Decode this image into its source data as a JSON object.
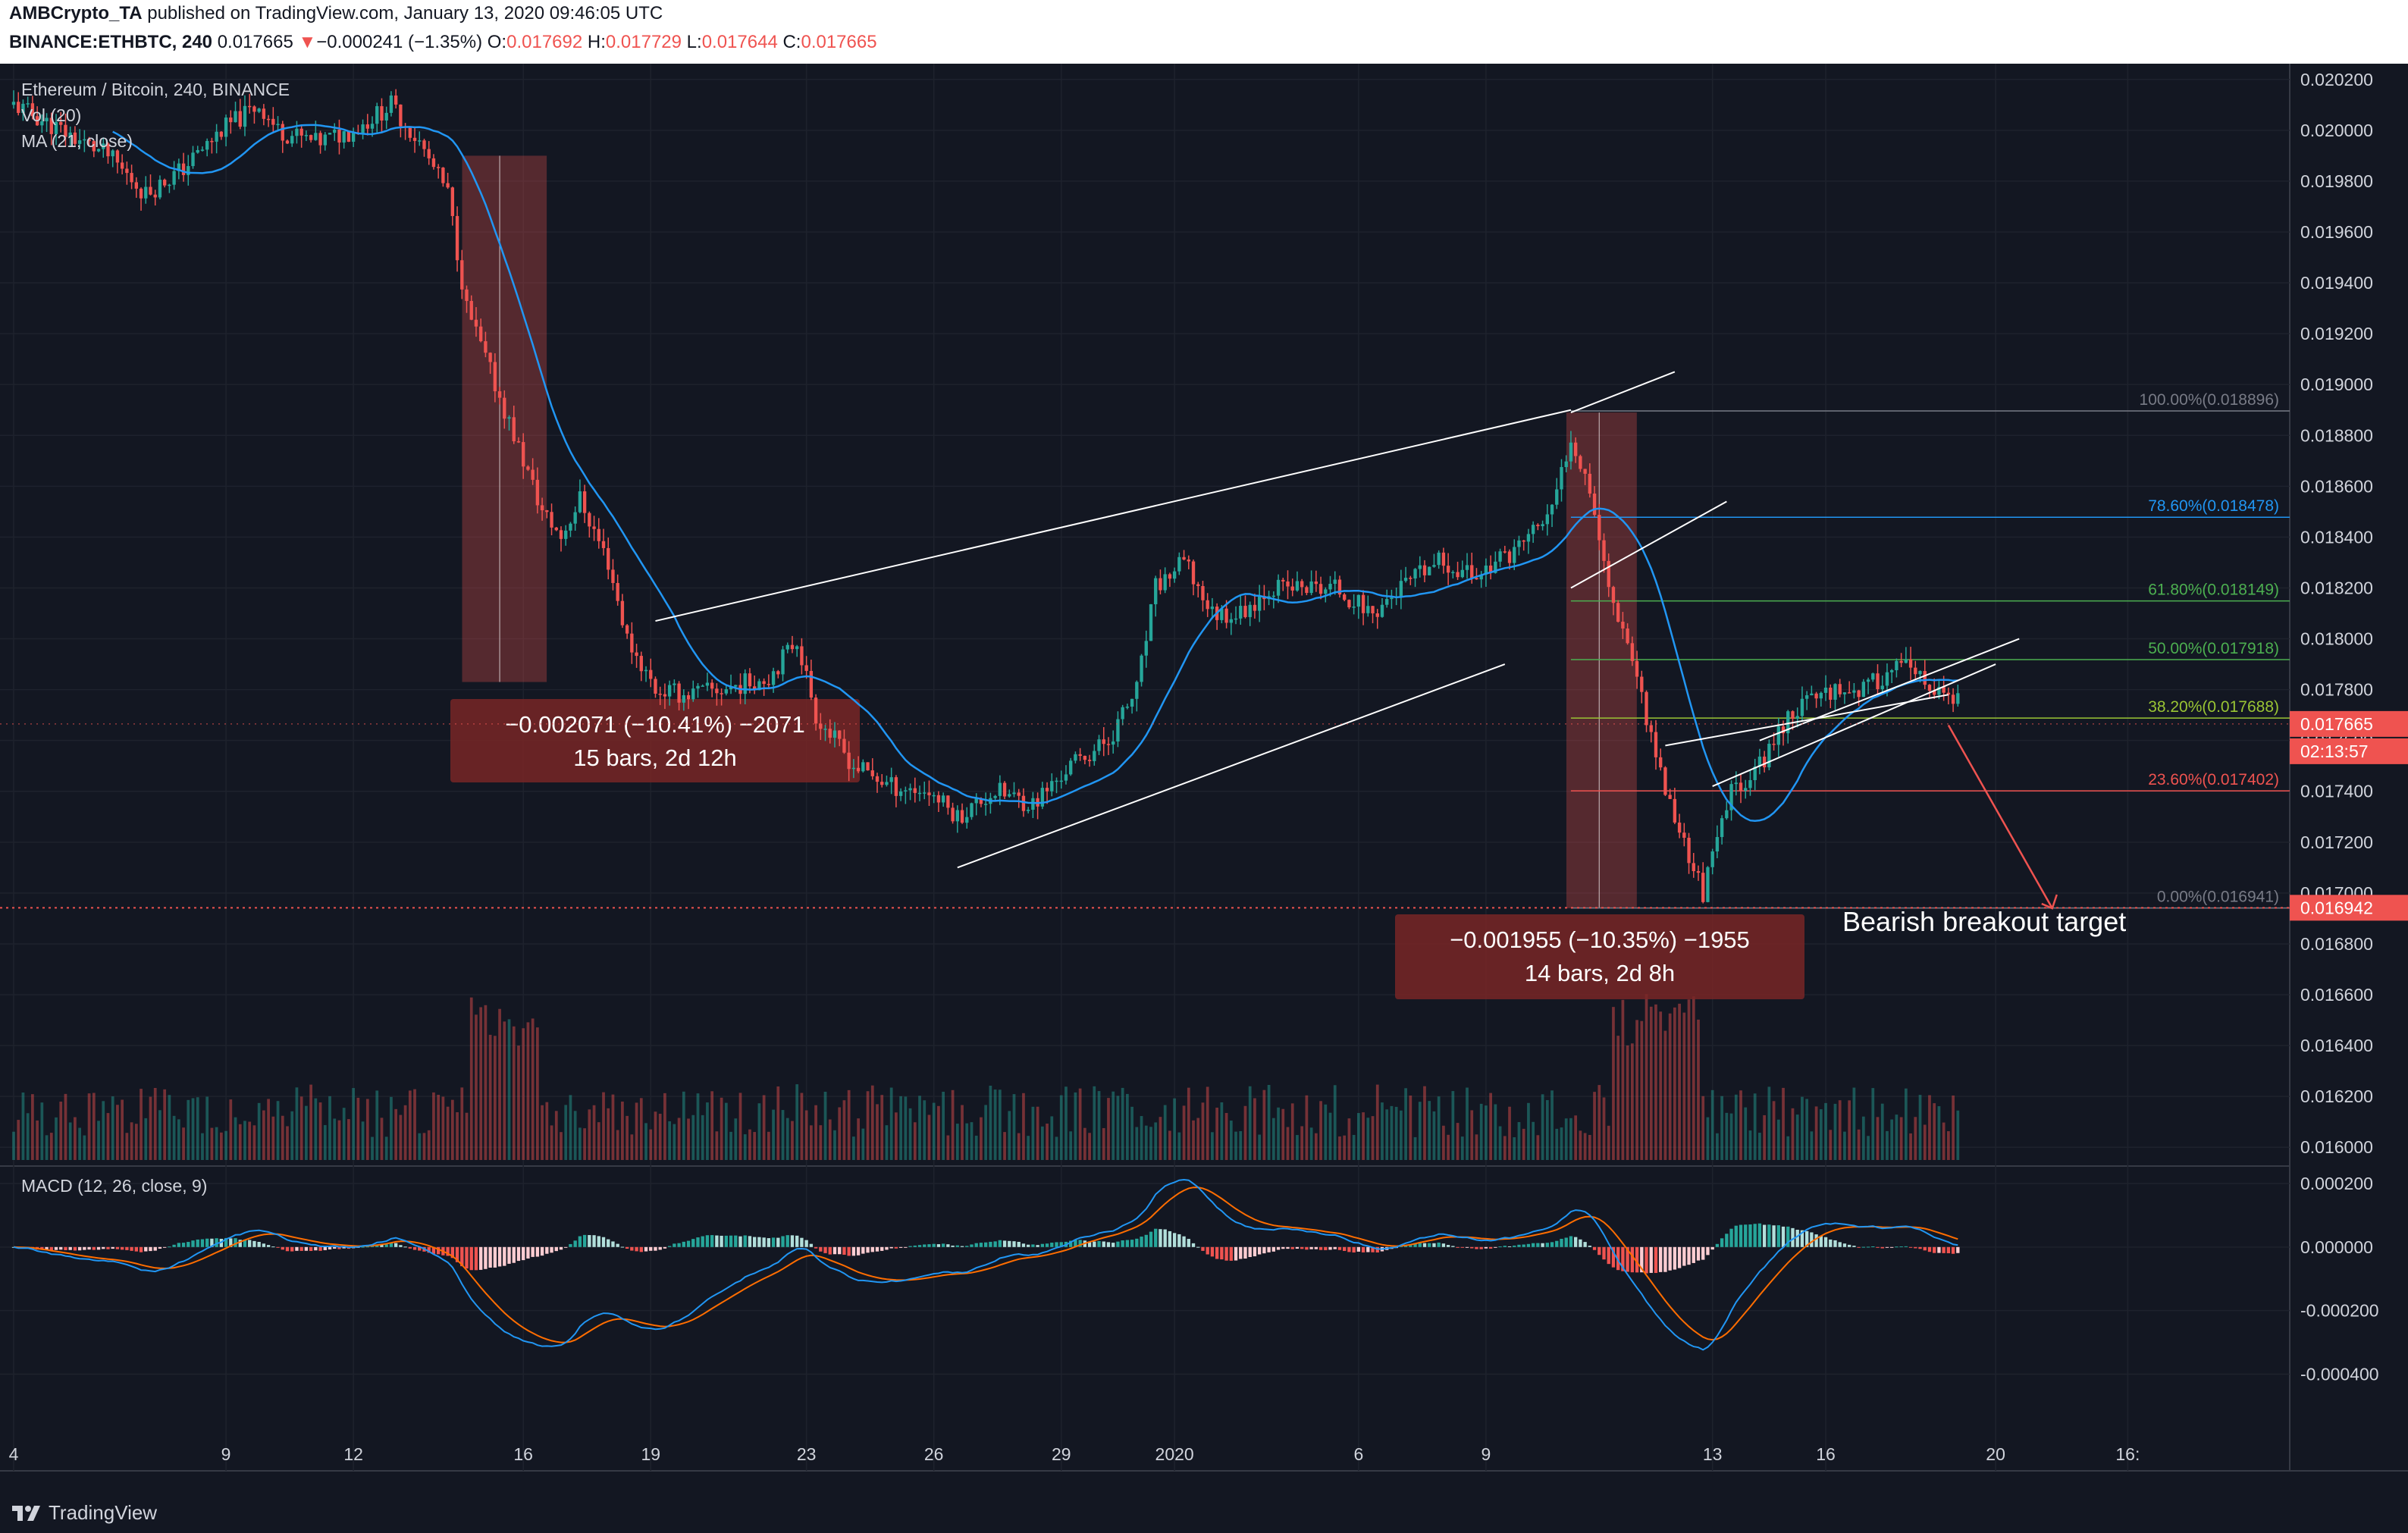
{
  "header": {
    "publisher": "AMBCrypto_TA",
    "published_text": "published on TradingView.com, January 13, 2020 09:46:05 UTC",
    "symbol": "BINANCE:ETHBTC, 240",
    "last": "0.017665",
    "change_arrow": "▼",
    "change": "−0.000241 (−1.35%)",
    "o_label": "O:",
    "o": "0.017692",
    "h_label": "H:",
    "h": "0.017729",
    "l_label": "L:",
    "l": "0.017644",
    "c_label": "C:",
    "c": "0.017665"
  },
  "legend": {
    "title": "Ethereum / Bitcoin, 240, BINANCE",
    "vol": "Vol (20)",
    "ma": "MA (21, close)"
  },
  "macd_legend": "MACD (12, 26, close, 9)",
  "price_tags": {
    "current": "0.017665",
    "countdown": "02:13:57",
    "target": "0.016942"
  },
  "measure_boxes": [
    {
      "line1": "−0.002071 (−10.41%) −2071",
      "line2": "15 bars, 2d 12h"
    },
    {
      "line1": "−0.001955 (−10.35%) −1955",
      "line2": "14 bars, 2d 8h"
    }
  ],
  "fib_levels": [
    {
      "label": "100.00%(0.018896)",
      "price": 0.018896,
      "color": "#787b86"
    },
    {
      "label": "78.60%(0.018478)",
      "price": 0.018478,
      "color": "#2196f3"
    },
    {
      "label": "61.80%(0.018149)",
      "price": 0.018149,
      "color": "#4caf50"
    },
    {
      "label": "50.00%(0.017918)",
      "price": 0.017918,
      "color": "#4caf50"
    },
    {
      "label": "38.20%(0.017688)",
      "price": 0.017688,
      "color": "#9ac534"
    },
    {
      "label": "23.60%(0.017402)",
      "price": 0.017402,
      "color": "#ef5350"
    },
    {
      "label": "0.00%(0.016941)",
      "price": 0.016941,
      "color": "#787b86"
    }
  ],
  "annotation": "Bearish breakout target",
  "footer": {
    "brand": "TradingView"
  },
  "colors": {
    "background": "#131722",
    "up": "#26a69a",
    "down": "#ef5350",
    "ma": "#2196f3",
    "macd_line": "#2196f3",
    "signal_line": "#ff6d00"
  },
  "chart_data": [
    {
      "type": "candlestick",
      "title": "Ethereum / Bitcoin, 240, BINANCE",
      "ylim": [
        0.01595,
        0.02025
      ],
      "y_ticks": [
        "0.020200",
        "0.020000",
        "0.019800",
        "0.019600",
        "0.019400",
        "0.019200",
        "0.019000",
        "0.018800",
        "0.018600",
        "0.018400",
        "0.018200",
        "0.018000",
        "0.017800",
        "0.017600",
        "0.017400",
        "0.017200",
        "0.017000",
        "0.016800",
        "0.016600",
        "0.016400",
        "0.016200",
        "0.016000"
      ],
      "x_ticks": [
        "4",
        "9",
        "12",
        "16",
        "19",
        "23",
        "26",
        "29",
        "2020",
        "6",
        "9",
        "13",
        "16",
        "20",
        "16:"
      ],
      "close_path": [
        [
          0,
          0.0201
        ],
        [
          10,
          0.02
        ],
        [
          20,
          0.0199
        ],
        [
          28,
          0.01975
        ],
        [
          36,
          0.01985
        ],
        [
          44,
          0.02
        ],
        [
          52,
          0.0201
        ],
        [
          56,
          0.02
        ],
        [
          64,
          0.01995
        ],
        [
          72,
          0.02
        ],
        [
          80,
          0.0201
        ],
        [
          86,
          0.01995
        ],
        [
          92,
          0.01975
        ],
        [
          96,
          0.0193
        ],
        [
          100,
          0.0191
        ],
        [
          106,
          0.0188
        ],
        [
          112,
          0.0185
        ],
        [
          116,
          0.0184
        ],
        [
          120,
          0.01855
        ],
        [
          126,
          0.0183
        ],
        [
          130,
          0.018
        ],
        [
          136,
          0.0178
        ],
        [
          142,
          0.01778
        ],
        [
          150,
          0.0178
        ],
        [
          160,
          0.01785
        ],
        [
          166,
          0.018
        ],
        [
          170,
          0.0177
        ],
        [
          178,
          0.0175
        ],
        [
          186,
          0.01742
        ],
        [
          194,
          0.0174
        ],
        [
          200,
          0.0173
        ],
        [
          208,
          0.0174
        ],
        [
          216,
          0.01735
        ],
        [
          224,
          0.0175
        ],
        [
          232,
          0.0176
        ],
        [
          238,
          0.0178
        ],
        [
          242,
          0.0182
        ],
        [
          248,
          0.0183
        ],
        [
          254,
          0.0181
        ],
        [
          260,
          0.0181
        ],
        [
          266,
          0.0182
        ],
        [
          274,
          0.0182
        ],
        [
          280,
          0.0182
        ],
        [
          288,
          0.0181
        ],
        [
          294,
          0.0182
        ],
        [
          302,
          0.0183
        ],
        [
          310,
          0.01825
        ],
        [
          318,
          0.01835
        ],
        [
          326,
          0.0185
        ],
        [
          330,
          0.0188
        ],
        [
          334,
          0.0186
        ],
        [
          338,
          0.0182
        ],
        [
          342,
          0.018
        ],
        [
          346,
          0.0177
        ],
        [
          350,
          0.0174
        ],
        [
          354,
          0.0172
        ],
        [
          358,
          0.017
        ],
        [
          364,
          0.0174
        ],
        [
          370,
          0.0175
        ],
        [
          376,
          0.0177
        ],
        [
          384,
          0.0178
        ],
        [
          392,
          0.0178
        ],
        [
          400,
          0.0179
        ],
        [
          406,
          0.0178
        ],
        [
          412,
          0.01775
        ]
      ],
      "ma_period": 21,
      "volume_note": "Vol (20) histogram, values not labeled",
      "trendlines_note": "ascending channel, rising wedge, bearish breakout arrow to 0.016942"
    },
    {
      "type": "macd",
      "title": "MACD (12, 26, close, 9)",
      "ylim": [
        -0.00058,
        0.00025
      ],
      "y_ticks": [
        "0.000200",
        "0.000000",
        "-0.000200",
        "-0.000400"
      ]
    }
  ]
}
